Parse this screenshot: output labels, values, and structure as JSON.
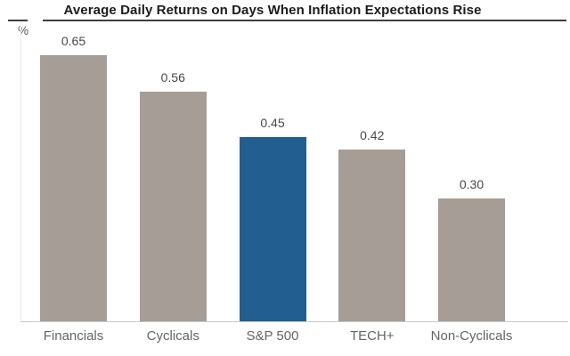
{
  "header": {
    "title": "Average Daily Returns on Days When Inflation Expectations Rise",
    "unit_label": "%"
  },
  "chart_data": {
    "type": "bar",
    "title": "Average Daily Returns on Days When Inflation Expectations Rise",
    "ylabel": "%",
    "categories": [
      "Financials",
      "Cyclicals",
      "S&P 500",
      "TECH+",
      "Non-Cyclicals"
    ],
    "values": [
      0.65,
      0.56,
      0.45,
      0.42,
      0.3
    ],
    "highlight_category": "S&P 500",
    "ylim": [
      0,
      0.73
    ],
    "grid": false,
    "legend": "none",
    "value_label_decimals": 2,
    "colors": {
      "default_bar": "#a69e96",
      "highlight_bar": "#235e90",
      "baseline": "#c9c9c9",
      "title_rule": "#3f3f3f",
      "title_text": "#1c1c1c",
      "value_text": "#484848",
      "category_text": "#656565"
    }
  }
}
